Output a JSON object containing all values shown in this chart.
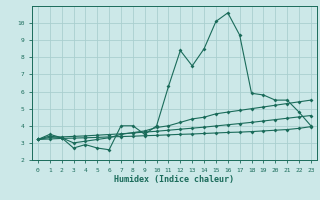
{
  "xlabel": "Humidex (Indice chaleur)",
  "ylabel": "",
  "bg_color": "#cce8e8",
  "grid_color": "#aacfcf",
  "line_color": "#1a6b5a",
  "xlim": [
    -0.5,
    23.5
  ],
  "ylim": [
    2,
    11
  ],
  "xticks": [
    0,
    1,
    2,
    3,
    4,
    5,
    6,
    7,
    8,
    9,
    10,
    11,
    12,
    13,
    14,
    15,
    16,
    17,
    18,
    19,
    20,
    21,
    22,
    23
  ],
  "yticks": [
    2,
    3,
    4,
    5,
    6,
    7,
    8,
    9,
    10
  ],
  "line1_x": [
    0,
    1,
    2,
    3,
    4,
    5,
    6,
    7,
    8,
    9,
    10,
    11,
    12,
    13,
    14,
    15,
    16,
    17,
    18,
    19,
    20,
    21,
    22,
    23
  ],
  "line1_y": [
    3.2,
    3.5,
    3.3,
    2.7,
    2.9,
    2.7,
    2.6,
    4.0,
    4.0,
    3.5,
    4.0,
    6.3,
    8.4,
    7.5,
    8.5,
    10.1,
    10.6,
    9.3,
    5.9,
    5.8,
    5.5,
    5.5,
    4.8,
    4.0
  ],
  "line2_x": [
    0,
    1,
    2,
    3,
    4,
    5,
    6,
    7,
    8,
    9,
    10,
    11,
    12,
    13,
    14,
    15,
    16,
    17,
    18,
    19,
    20,
    21,
    22,
    23
  ],
  "line2_y": [
    3.2,
    3.4,
    3.3,
    3.0,
    3.1,
    3.2,
    3.3,
    3.5,
    3.6,
    3.7,
    3.9,
    4.0,
    4.2,
    4.4,
    4.5,
    4.7,
    4.8,
    4.9,
    5.0,
    5.1,
    5.2,
    5.3,
    5.4,
    5.5
  ],
  "line3_x": [
    0,
    1,
    2,
    3,
    4,
    5,
    6,
    7,
    8,
    9,
    10,
    11,
    12,
    13,
    14,
    15,
    16,
    17,
    18,
    19,
    20,
    21,
    22,
    23
  ],
  "line3_y": [
    3.2,
    3.32,
    3.35,
    3.38,
    3.41,
    3.45,
    3.49,
    3.53,
    3.58,
    3.63,
    3.68,
    3.74,
    3.8,
    3.86,
    3.92,
    3.99,
    4.06,
    4.13,
    4.2,
    4.28,
    4.36,
    4.44,
    4.52,
    4.6
  ],
  "line4_x": [
    0,
    1,
    2,
    3,
    4,
    5,
    6,
    7,
    8,
    9,
    10,
    11,
    12,
    13,
    14,
    15,
    16,
    17,
    18,
    19,
    20,
    21,
    22,
    23
  ],
  "line4_y": [
    3.2,
    3.23,
    3.26,
    3.28,
    3.3,
    3.32,
    3.35,
    3.37,
    3.39,
    3.42,
    3.44,
    3.47,
    3.5,
    3.52,
    3.55,
    3.58,
    3.61,
    3.63,
    3.66,
    3.7,
    3.74,
    3.78,
    3.85,
    3.95
  ]
}
